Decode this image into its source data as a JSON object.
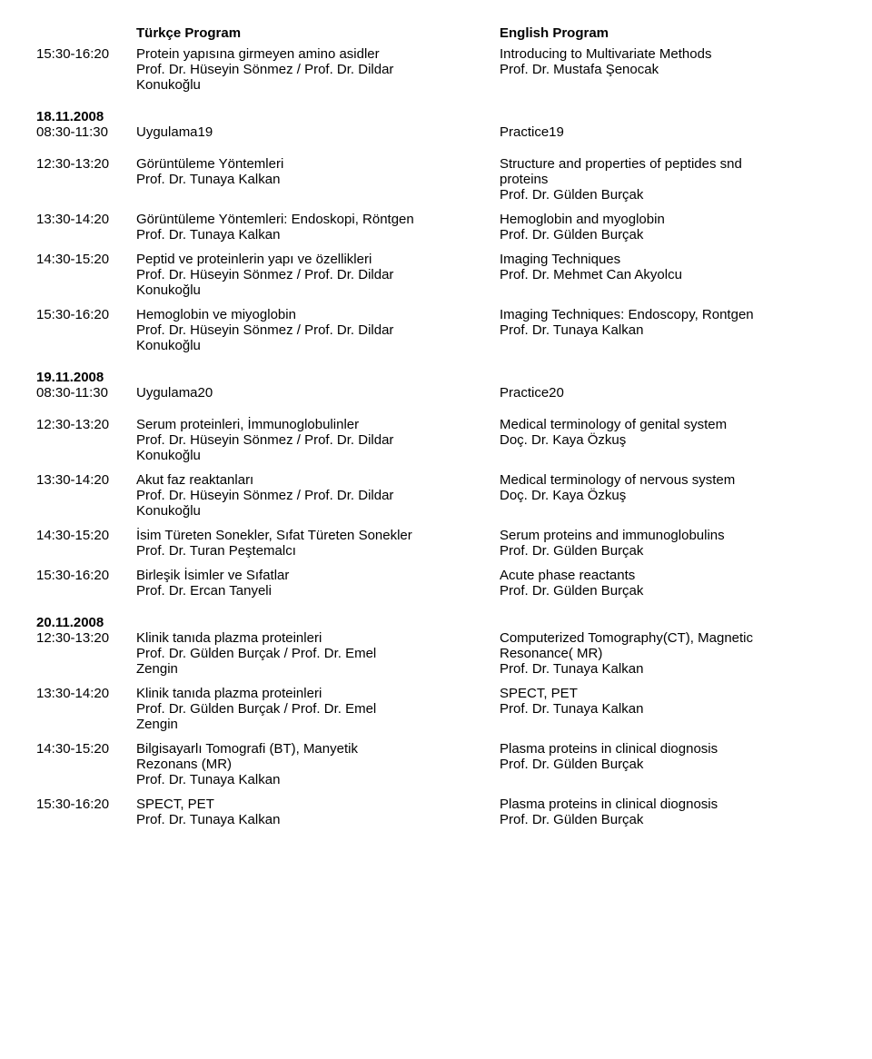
{
  "headers": {
    "tr": "Türkçe Program",
    "en": "English Program"
  },
  "sections": [
    {
      "entries": [
        {
          "time": "15:30-16:20",
          "tr": [
            "Protein yapısına girmeyen amino asidler",
            "Prof. Dr. Hüseyin Sönmez / Prof. Dr. Dildar",
            "Konukoğlu"
          ],
          "en": [
            "Introducing to Multivariate Methods",
            "Prof. Dr. Mustafa Şenocak"
          ]
        }
      ]
    },
    {
      "date": "18.11.2008",
      "entries": [
        {
          "time": "08:30-11:30",
          "tr": [
            "Uygulama19"
          ],
          "en": [
            "Practice19"
          ]
        }
      ]
    },
    {
      "entries": [
        {
          "time": "12:30-13:20",
          "tr": [
            "Görüntüleme Yöntemleri",
            "Prof. Dr. Tunaya Kalkan"
          ],
          "en": [
            "Structure and properties of peptides snd",
            "proteins",
            "Prof. Dr. Gülden Burçak"
          ]
        },
        {
          "time": "13:30-14:20",
          "tr": [
            "Görüntüleme Yöntemleri: Endoskopi, Röntgen",
            "Prof. Dr. Tunaya Kalkan"
          ],
          "en": [
            "Hemoglobin and myoglobin",
            "Prof. Dr. Gülden Burçak"
          ]
        },
        {
          "time": "14:30-15:20",
          "tr": [
            "Peptid ve proteinlerin yapı ve özellikleri",
            "Prof. Dr. Hüseyin Sönmez / Prof. Dr. Dildar",
            "Konukoğlu"
          ],
          "en": [
            "Imaging Techniques",
            "Prof. Dr. Mehmet Can Akyolcu"
          ]
        },
        {
          "time": "15:30-16:20",
          "tr": [
            "Hemoglobin ve miyoglobin",
            "Prof. Dr. Hüseyin Sönmez / Prof. Dr. Dildar",
            "Konukoğlu"
          ],
          "en": [
            "Imaging Techniques: Endoscopy, Rontgen",
            "Prof. Dr. Tunaya Kalkan"
          ]
        }
      ]
    },
    {
      "date": "19.11.2008",
      "entries": [
        {
          "time": "08:30-11:30",
          "tr": [
            "Uygulama20"
          ],
          "en": [
            "Practice20"
          ]
        }
      ]
    },
    {
      "entries": [
        {
          "time": "12:30-13:20",
          "tr": [
            "Serum proteinleri, İmmunoglobulinler",
            "Prof. Dr. Hüseyin Sönmez / Prof. Dr. Dildar",
            "Konukoğlu"
          ],
          "en": [
            "Medical terminology of genital system",
            "Doç. Dr. Kaya Özkuş"
          ]
        },
        {
          "time": "13:30-14:20",
          "tr": [
            "Akut faz reaktanları",
            "Prof. Dr. Hüseyin Sönmez / Prof. Dr. Dildar",
            "Konukoğlu"
          ],
          "en": [
            "Medical terminology of nervous system",
            "Doç. Dr. Kaya Özkuş"
          ]
        },
        {
          "time": "14:30-15:20",
          "tr": [
            "İsim Türeten Sonekler, Sıfat Türeten Sonekler",
            "Prof. Dr. Turan Peştemalcı"
          ],
          "en": [
            "Serum proteins and immunoglobulins",
            "Prof. Dr. Gülden Burçak"
          ]
        },
        {
          "time": "15:30-16:20",
          "tr": [
            "Birleşik İsimler ve Sıfatlar",
            "Prof. Dr. Ercan Tanyeli"
          ],
          "en": [
            "Acute phase reactants",
            "Prof. Dr. Gülden Burçak"
          ]
        }
      ]
    },
    {
      "date": "20.11.2008",
      "entries": [
        {
          "time": "12:30-13:20",
          "tr": [
            "Klinik tanıda plazma proteinleri",
            "Prof. Dr. Gülden Burçak / Prof. Dr. Emel",
            "Zengin"
          ],
          "en": [
            "Computerized Tomography(CT), Magnetic",
            "Resonance( MR)",
            "Prof. Dr. Tunaya Kalkan"
          ]
        },
        {
          "time": "13:30-14:20",
          "tr": [
            "Klinik tanıda plazma proteinleri",
            "Prof. Dr. Gülden Burçak / Prof. Dr. Emel",
            "Zengin"
          ],
          "en": [
            "SPECT, PET",
            "Prof. Dr. Tunaya Kalkan"
          ]
        },
        {
          "time": "14:30-15:20",
          "tr": [
            "Bilgisayarlı Tomografi (BT), Manyetik",
            "Rezonans (MR)",
            "Prof. Dr. Tunaya Kalkan"
          ],
          "en": [
            "Plasma proteins in clinical diognosis",
            "Prof. Dr. Gülden Burçak"
          ]
        },
        {
          "time": "15:30-16:20",
          "tr": [
            "SPECT, PET",
            "Prof. Dr. Tunaya Kalkan"
          ],
          "en": [
            "Plasma proteins in clinical diognosis",
            "Prof. Dr. Gülden Burçak"
          ]
        }
      ]
    }
  ]
}
